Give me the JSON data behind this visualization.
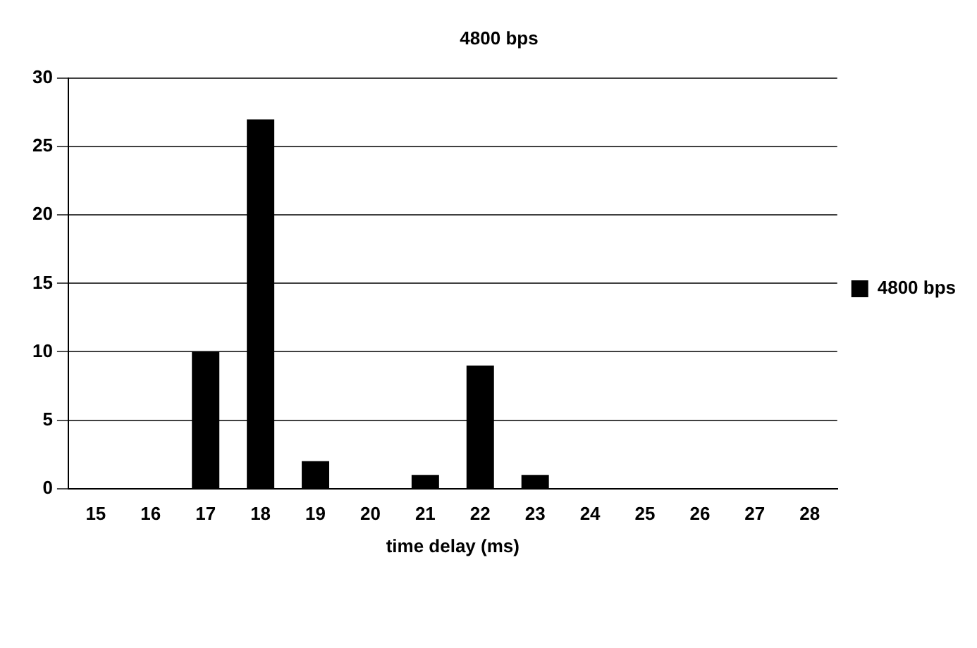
{
  "chart_data": {
    "type": "bar",
    "title": "4800 bps",
    "xlabel": "time delay (ms)",
    "categories": [
      "15",
      "16",
      "17",
      "18",
      "19",
      "20",
      "21",
      "22",
      "23",
      "24",
      "25",
      "26",
      "27",
      "28"
    ],
    "series": [
      {
        "name": "4800 bps",
        "color": "#000000",
        "values": [
          0,
          0,
          10,
          27,
          2,
          0,
          1,
          9,
          1,
          0,
          0,
          0,
          0,
          0
        ]
      }
    ],
    "ylim": [
      0,
      30
    ],
    "yticks": [
      0,
      5,
      10,
      15,
      20,
      25,
      30
    ],
    "grid": "y",
    "legend": "right"
  }
}
